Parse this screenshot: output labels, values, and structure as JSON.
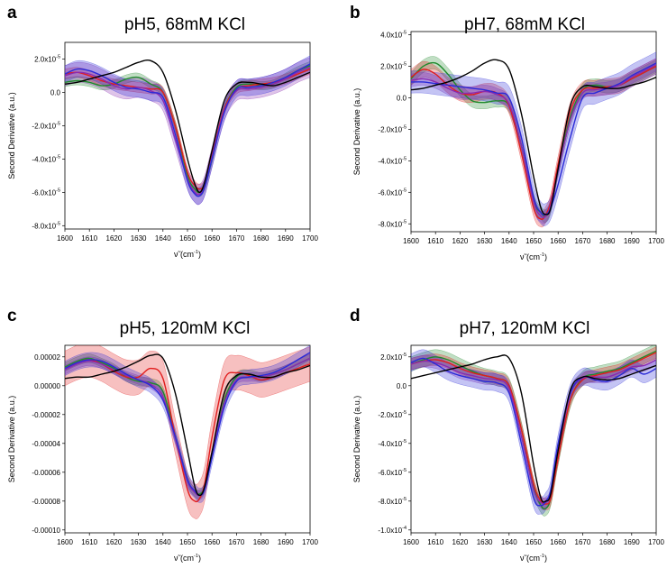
{
  "figure": {
    "x_label_main": "ν̃ (cm",
    "x_label_sup": "-1",
    "x_label_end": ")",
    "y_label": "Second Derivative (a.u.)"
  },
  "series_colors": {
    "black": "#000000",
    "green": "#1f8a2c",
    "red": "#e11d1d",
    "blue": "#2a2ad8",
    "purple": "#8a2ab0"
  },
  "chart_data": [
    {
      "type": "line",
      "panel": "a",
      "title": "pH5, 68mM KCl",
      "xlabel": "ν̃ (cm-1)",
      "ylabel": "Second Derivative (a.u.)",
      "xlim": [
        1600,
        1700
      ],
      "ylim": [
        -8.2e-05,
        3e-05
      ],
      "x_ticks": [
        1600,
        1610,
        1620,
        1630,
        1640,
        1650,
        1660,
        1670,
        1680,
        1690,
        1700
      ],
      "y_ticks": [
        {
          "value": 2e-05,
          "label": "2.0x10",
          "exp": "-5"
        },
        {
          "value": 0.0,
          "label": "0.0",
          "exp": ""
        },
        {
          "value": -2e-05,
          "label": "-2.0x10",
          "exp": "-5"
        },
        {
          "value": -4e-05,
          "label": "-4.0x10",
          "exp": "-5"
        },
        {
          "value": -6e-05,
          "label": "-6.0x10",
          "exp": "-5"
        },
        {
          "value": -8e-05,
          "label": "-8.0x10",
          "exp": "-5"
        }
      ],
      "x": [
        1600,
        1605,
        1610,
        1615,
        1620,
        1625,
        1630,
        1635,
        1640,
        1645,
        1650,
        1653,
        1655,
        1657,
        1660,
        1665,
        1670,
        1675,
        1680,
        1685,
        1690,
        1695,
        1700
      ],
      "series": [
        {
          "name": "black",
          "color_key": "black",
          "values": [
            5e-06,
            6e-06,
            8e-06,
            1e-05,
            1.2e-05,
            1.5e-05,
            1.8e-05,
            1.9e-05,
            1.2e-05,
            -1e-05,
            -4e-05,
            -5.5e-05,
            -6e-05,
            -5.4e-05,
            -3.5e-05,
            -5e-06,
            5e-06,
            6e-06,
            5e-06,
            4e-06,
            6e-06,
            9e-06,
            1.2e-05
          ],
          "band": 0
        },
        {
          "name": "green",
          "color_key": "green",
          "values": [
            6e-06,
            7e-06,
            6e-06,
            4e-06,
            5e-06,
            8e-06,
            9e-06,
            5e-06,
            0.0,
            -2e-05,
            -5e-05,
            -5.8e-05,
            -6e-05,
            -5.6e-05,
            -4e-05,
            -1e-05,
            3e-06,
            5e-06,
            4e-06,
            5e-06,
            9e-06,
            1.3e-05,
            1.6e-05
          ],
          "band": 2.5e-06
        },
        {
          "name": "red",
          "color_key": "red",
          "values": [
            1.1e-05,
            1.2e-05,
            1e-05,
            7e-06,
            5e-06,
            4e-06,
            3e-06,
            2e-06,
            0.0,
            -2e-05,
            -4.8e-05,
            -5.6e-05,
            -5.8e-05,
            -5.5e-05,
            -3.8e-05,
            -1e-05,
            2e-06,
            4e-06,
            5e-06,
            6e-06,
            8e-06,
            1.1e-05,
            1.4e-05
          ],
          "band": 3e-06
        },
        {
          "name": "blue",
          "color_key": "blue",
          "values": [
            1.1e-05,
            1.4e-05,
            1.3e-05,
            1e-05,
            6e-06,
            3e-06,
            2e-06,
            0.0,
            -3e-06,
            -2.5e-05,
            -5.3e-05,
            -6.1e-05,
            -6.2e-05,
            -5.7e-05,
            -4e-05,
            -1.2e-05,
            2e-06,
            3e-06,
            4e-06,
            6e-06,
            9e-06,
            1.3e-05,
            1.7e-05
          ],
          "band": 5e-06
        },
        {
          "name": "purple",
          "color_key": "purple",
          "values": [
            1e-05,
            1.2e-05,
            1.1e-05,
            8e-06,
            4e-06,
            2e-06,
            3e-06,
            1e-06,
            -5e-06,
            -2.8e-05,
            -5.2e-05,
            -6e-05,
            -6.1e-05,
            -5.6e-05,
            -3.9e-05,
            -1.1e-05,
            1e-06,
            2e-06,
            3e-06,
            5e-06,
            8e-06,
            1.2e-05,
            1.5e-05
          ],
          "band": 6e-06
        }
      ]
    },
    {
      "type": "line",
      "panel": "b",
      "title": "pH7, 68mM KCl",
      "xlabel": "ν̃ (cm-1)",
      "ylabel": "Second Derivative (a.u.)",
      "xlim": [
        1600,
        1700
      ],
      "ylim": [
        -8.5e-05,
        4.2e-05
      ],
      "x_ticks": [
        1600,
        1610,
        1620,
        1630,
        1640,
        1650,
        1660,
        1670,
        1680,
        1690,
        1700
      ],
      "y_ticks": [
        {
          "value": 4e-05,
          "label": "4.0x10",
          "exp": "-5"
        },
        {
          "value": 2e-05,
          "label": "2.0x10",
          "exp": "-5"
        },
        {
          "value": 0.0,
          "label": "0.0",
          "exp": ""
        },
        {
          "value": -2e-05,
          "label": "-2.0x10",
          "exp": "-5"
        },
        {
          "value": -4e-05,
          "label": "-4.0x10",
          "exp": "-5"
        },
        {
          "value": -6e-05,
          "label": "-6.0x10",
          "exp": "-5"
        },
        {
          "value": -8e-05,
          "label": "-8.0x10",
          "exp": "-5"
        }
      ],
      "x": [
        1600,
        1605,
        1610,
        1615,
        1620,
        1625,
        1630,
        1635,
        1640,
        1645,
        1650,
        1653,
        1655,
        1657,
        1660,
        1665,
        1670,
        1675,
        1680,
        1685,
        1690,
        1695,
        1700
      ],
      "series": [
        {
          "name": "black",
          "color_key": "black",
          "values": [
            5e-06,
            6e-06,
            8e-06,
            1e-05,
            1.3e-05,
            1.7e-05,
            2.2e-05,
            2.4e-05,
            1.8e-05,
            -1e-05,
            -5e-05,
            -7e-05,
            -7.4e-05,
            -7e-05,
            -4.5e-05,
            -5e-06,
            7e-06,
            7e-06,
            6e-06,
            6e-06,
            8e-06,
            1e-05,
            1.3e-05
          ],
          "band": 0
        },
        {
          "name": "green",
          "color_key": "green",
          "values": [
            1.2e-05,
            2e-05,
            2.2e-05,
            1.5e-05,
            5e-06,
            -2e-06,
            -3e-06,
            -2e-06,
            -5e-06,
            -3e-05,
            -6.5e-05,
            -7.3e-05,
            -7.5e-05,
            -6.9e-05,
            -4.5e-05,
            -1.2e-05,
            5e-06,
            8e-06,
            7e-06,
            8e-06,
            1.2e-05,
            1.6e-05,
            2e-05
          ],
          "band": 4e-06
        },
        {
          "name": "red",
          "color_key": "red",
          "values": [
            1.3e-05,
            1.8e-05,
            1.5e-05,
            8e-06,
            3e-06,
            2e-06,
            4e-06,
            3e-06,
            -5e-06,
            -3.5e-05,
            -7e-05,
            -7.7e-05,
            -7.4e-05,
            -6.6e-05,
            -4.2e-05,
            -8e-06,
            5e-06,
            6e-06,
            7e-06,
            8e-06,
            1.2e-05,
            1.6e-05,
            2e-05
          ],
          "band": 5e-06
        },
        {
          "name": "blue",
          "color_key": "blue",
          "values": [
            1e-05,
            1e-05,
            9e-06,
            8e-06,
            7e-06,
            6e-06,
            5e-06,
            3e-06,
            0.0,
            -2.5e-05,
            -6.3e-05,
            -7.3e-05,
            -7.4e-05,
            -7e-05,
            -5.5e-05,
            -2.5e-05,
            0.0,
            3e-06,
            6e-06,
            9e-06,
            1.4e-05,
            1.8e-05,
            2.2e-05
          ],
          "band": 7e-06
        },
        {
          "name": "purple",
          "color_key": "purple",
          "values": [
            1.1e-05,
            1.2e-05,
            1e-05,
            6e-06,
            3e-06,
            3e-06,
            4e-06,
            2e-06,
            -4e-06,
            -3e-05,
            -6.6e-05,
            -7.5e-05,
            -7.5e-05,
            -6.8e-05,
            -4.6e-05,
            -1.4e-05,
            3e-06,
            5e-06,
            6e-06,
            8e-06,
            1.3e-05,
            1.7e-05,
            2.1e-05
          ],
          "band": 4e-06
        }
      ]
    },
    {
      "type": "line",
      "panel": "c",
      "title": "pH5, 120mM KCl",
      "xlabel": "ν̃ (cm-1)",
      "ylabel": "Second Derivative (a.u.)",
      "xlim": [
        1600,
        1700
      ],
      "ylim": [
        -0.000102,
        2.8e-05
      ],
      "x_ticks": [
        1600,
        1610,
        1620,
        1630,
        1640,
        1650,
        1660,
        1670,
        1680,
        1690,
        1700
      ],
      "y_ticks": [
        {
          "value": 2e-05,
          "label": "0.00002",
          "exp": ""
        },
        {
          "value": 0.0,
          "label": "0.00000",
          "exp": ""
        },
        {
          "value": -2e-05,
          "label": "-0.00002",
          "exp": ""
        },
        {
          "value": -4e-05,
          "label": "-0.00004",
          "exp": ""
        },
        {
          "value": -6e-05,
          "label": "-0.00006",
          "exp": ""
        },
        {
          "value": -8e-05,
          "label": "-0.00008",
          "exp": ""
        },
        {
          "value": -0.0001,
          "label": "-0.00010",
          "exp": ""
        }
      ],
      "x": [
        1600,
        1605,
        1610,
        1615,
        1620,
        1625,
        1630,
        1635,
        1640,
        1645,
        1650,
        1653,
        1655,
        1657,
        1660,
        1665,
        1670,
        1675,
        1680,
        1685,
        1690,
        1695,
        1700
      ],
      "series": [
        {
          "name": "black",
          "color_key": "black",
          "values": [
            5e-06,
            6e-06,
            6e-06,
            8e-06,
            1e-05,
            1.3e-05,
            1.7e-05,
            2.1e-05,
            1.9e-05,
            -5e-06,
            -4.5e-05,
            -7e-05,
            -7.6e-05,
            -7e-05,
            -4.6e-05,
            -5e-06,
            7e-06,
            8e-06,
            6e-06,
            6e-06,
            9e-06,
            1.1e-05,
            1.4e-05
          ],
          "band": 0
        },
        {
          "name": "green",
          "color_key": "green",
          "values": [
            1.3e-05,
            1.7e-05,
            1.9e-05,
            1.6e-05,
            1.2e-05,
            6e-06,
            3e-06,
            2e-06,
            -4e-06,
            -3.5e-05,
            -6.5e-05,
            -7.4e-05,
            -7.5e-05,
            -7e-05,
            -4.8e-05,
            -1e-05,
            6e-06,
            8e-06,
            6e-06,
            8e-06,
            1.1e-05,
            1.5e-05,
            1.9e-05
          ],
          "band": 3e-06
        },
        {
          "name": "red",
          "color_key": "red",
          "values": [
            1.2e-05,
            1.6e-05,
            1.8e-05,
            1.5e-05,
            1e-05,
            6e-06,
            6e-06,
            1.2e-05,
            5e-06,
            -3.5e-05,
            -7.2e-05,
            -8e-05,
            -7.8e-05,
            -6.8e-05,
            -3.6e-05,
            4e-06,
            9e-06,
            7e-06,
            4e-06,
            6e-06,
            9e-06,
            1.2e-05,
            1.5e-05
          ],
          "band": 1.2e-05
        },
        {
          "name": "blue",
          "color_key": "blue",
          "values": [
            1.2e-05,
            1.6e-05,
            1.8e-05,
            1.7e-05,
            1.3e-05,
            8e-06,
            4e-06,
            0.0,
            -1e-05,
            -3.5e-05,
            -6.5e-05,
            -7.3e-05,
            -7.6e-05,
            -7.2e-05,
            -5e-05,
            -1.5e-05,
            3e-06,
            6e-06,
            7e-06,
            9e-06,
            1.3e-05,
            1.8e-05,
            2.3e-05
          ],
          "band": 5e-06
        },
        {
          "name": "purple",
          "color_key": "purple",
          "values": [
            1.1e-05,
            1.5e-05,
            1.7e-05,
            1.5e-05,
            1.1e-05,
            7e-06,
            4e-06,
            1e-06,
            -8e-06,
            -3.6e-05,
            -6.6e-05,
            -7.4e-05,
            -7.6e-05,
            -7.1e-05,
            -4.8e-05,
            -1.2e-05,
            4e-06,
            6e-06,
            6e-06,
            8e-06,
            1.1e-05,
            1.5e-05,
            1.9e-05
          ],
          "band": 3e-06
        }
      ]
    },
    {
      "type": "line",
      "panel": "d",
      "title": "pH7, 120mM KCl",
      "xlabel": "ν̃ (cm-1)",
      "ylabel": "Second Derivative (a.u.)",
      "xlim": [
        1600,
        1700
      ],
      "ylim": [
        -0.000102,
        2.8e-05
      ],
      "x_ticks": [
        1600,
        1610,
        1620,
        1630,
        1640,
        1650,
        1660,
        1670,
        1680,
        1690,
        1700
      ],
      "y_ticks": [
        {
          "value": 2e-05,
          "label": "2.0x10",
          "exp": "-5"
        },
        {
          "value": 0.0,
          "label": "0.0",
          "exp": ""
        },
        {
          "value": -2e-05,
          "label": "-2.0x10",
          "exp": "-5"
        },
        {
          "value": -4e-05,
          "label": "-4.0x10",
          "exp": "-5"
        },
        {
          "value": -6e-05,
          "label": "-6.0x10",
          "exp": "-5"
        },
        {
          "value": -8e-05,
          "label": "-8.0x10",
          "exp": "-5"
        },
        {
          "value": -0.0001,
          "label": "-1.0x10",
          "exp": "-4"
        }
      ],
      "x": [
        1600,
        1605,
        1610,
        1615,
        1620,
        1625,
        1630,
        1635,
        1640,
        1645,
        1650,
        1653,
        1655,
        1657,
        1660,
        1665,
        1670,
        1675,
        1680,
        1685,
        1690,
        1695,
        1700
      ],
      "series": [
        {
          "name": "black",
          "color_key": "black",
          "values": [
            5e-06,
            7e-06,
            9e-06,
            1.1e-05,
            1.3e-05,
            1.5e-05,
            1.8e-05,
            2e-05,
            1.9e-05,
            -5e-06,
            -5.5e-05,
            -7.8e-05,
            -8e-05,
            -7.5e-05,
            -4.5e-05,
            -3e-06,
            6e-06,
            5e-06,
            4e-06,
            5e-06,
            8e-06,
            1.1e-05,
            1.4e-05
          ],
          "band": 0
        },
        {
          "name": "green",
          "color_key": "green",
          "values": [
            1.5e-05,
            1.8e-05,
            2e-05,
            1.8e-05,
            1.4e-05,
            1e-05,
            7e-06,
            5e-06,
            0.0,
            -3e-05,
            -7e-05,
            -8.3e-05,
            -8.5e-05,
            -7.8e-05,
            -5e-05,
            -1e-05,
            5e-06,
            8e-06,
            1e-05,
            1.2e-05,
            1.6e-05,
            2e-05,
            2.4e-05
          ],
          "band": 5e-06
        },
        {
          "name": "red",
          "color_key": "red",
          "values": [
            1.5e-05,
            1.7e-05,
            1.8e-05,
            1.6e-05,
            1.2e-05,
            9e-06,
            7e-06,
            5e-06,
            0.0,
            -3e-05,
            -6.8e-05,
            -8e-05,
            -8.2e-05,
            -7.8e-05,
            -5e-05,
            -1e-05,
            4e-06,
            7e-06,
            9e-06,
            1.1e-05,
            1.5e-05,
            1.9e-05,
            2.3e-05
          ],
          "band": 4e-06
        },
        {
          "name": "blue",
          "color_key": "blue",
          "values": [
            1.6e-05,
            1.9e-05,
            1.5e-05,
            1e-05,
            7e-06,
            5e-06,
            3e-06,
            2e-06,
            -5e-06,
            -4e-05,
            -7.8e-05,
            -8.3e-05,
            -8e-05,
            -7.2e-05,
            -4e-05,
            -5e-06,
            6e-06,
            4e-06,
            3e-06,
            7e-06,
            1.2e-05,
            8e-06,
            1.2e-05
          ],
          "band": 6e-06
        },
        {
          "name": "purple",
          "color_key": "purple",
          "values": [
            1.5e-05,
            1.7e-05,
            1.6e-05,
            1.3e-05,
            9e-06,
            7e-06,
            5e-06,
            4e-06,
            -2e-06,
            -3.5e-05,
            -7.2e-05,
            -8.1e-05,
            -8.1e-05,
            -7.5e-05,
            -4.5e-05,
            -6e-06,
            5e-06,
            6e-06,
            6e-06,
            9e-06,
            1.3e-05,
            1.4e-05,
            1.8e-05
          ],
          "band": 4e-06
        }
      ]
    }
  ]
}
